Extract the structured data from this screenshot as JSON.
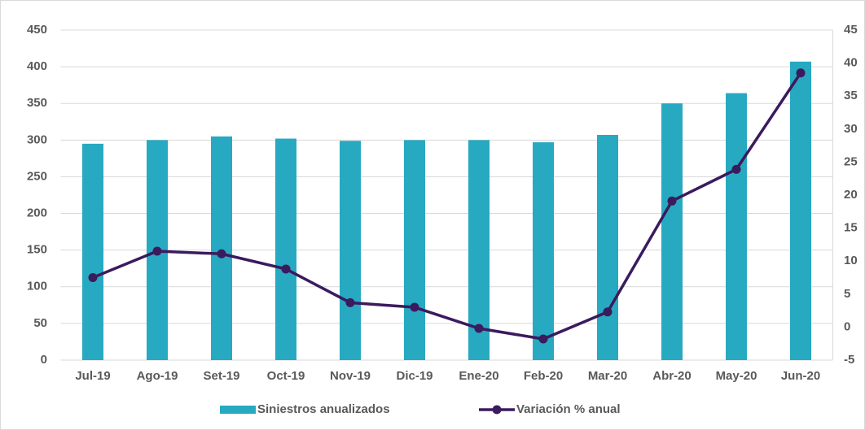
{
  "chart_data": {
    "type": "bar_line",
    "categories": [
      "Jul-19",
      "Ago-19",
      "Set-19",
      "Oct-19",
      "Nov-19",
      "Dic-19",
      "Ene-20",
      "Feb-20",
      "Mar-20",
      "Abr-20",
      "May-20",
      "Jun-20"
    ],
    "series": [
      {
        "name": "Siniestros anualizados",
        "color": "#27a9c1",
        "type": "bar",
        "values": [
          295,
          300,
          305,
          302,
          299,
          300,
          300,
          297,
          307,
          350,
          364,
          407
        ]
      },
      {
        "name": "Variación % anual",
        "color": "#3b1a5e",
        "type": "line",
        "axis": "y2",
        "values": [
          7.5,
          11.5,
          11.1,
          8.8,
          3.7,
          3.0,
          -0.2,
          -1.8,
          2.3,
          19.1,
          23.9,
          38.5
        ]
      }
    ],
    "ylim": [
      0,
      450
    ],
    "yticks": [
      0,
      50,
      100,
      150,
      200,
      250,
      300,
      350,
      400,
      450
    ],
    "y2lim": [
      -5,
      45
    ],
    "y2ticks": [
      -5,
      0,
      5,
      10,
      15,
      20,
      25,
      30,
      35,
      40,
      45
    ],
    "grid": true
  }
}
